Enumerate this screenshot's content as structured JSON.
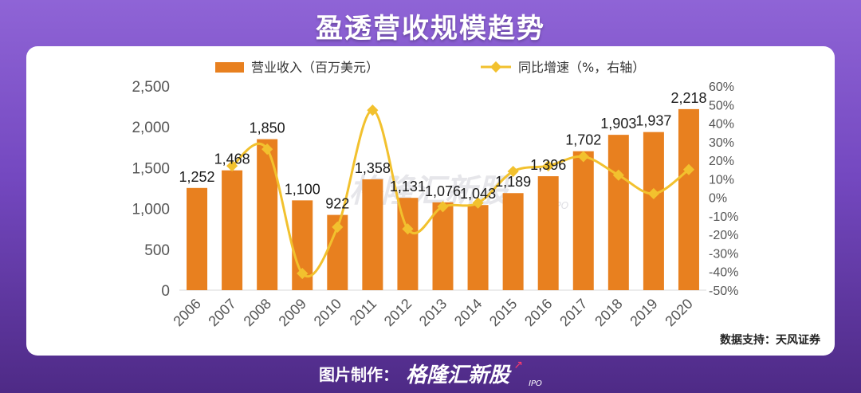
{
  "title": "盈透营收规模趋势",
  "source": "数据支持：天风证券",
  "footer": {
    "label": "图片制作：",
    "brand": "格隆汇新股",
    "brand_suffix": "IPO"
  },
  "watermark": {
    "text": "格隆汇新股",
    "suffix": "IPO"
  },
  "colors": {
    "bar": "#e8801f",
    "line": "#f2c12e",
    "axis_text": "#555555",
    "label_text": "#1a1a1a"
  },
  "chart_data": {
    "type": "bar",
    "categories": [
      "2006",
      "2007",
      "2008",
      "2009",
      "2010",
      "2011",
      "2012",
      "2013",
      "2014",
      "2015",
      "2016",
      "2017",
      "2018",
      "2019",
      "2020"
    ],
    "series": [
      {
        "name": "营业收入（百万美元）",
        "type": "bar",
        "axis": "left",
        "values": [
          1252,
          1468,
          1850,
          1100,
          922,
          1358,
          1131,
          1076,
          1043,
          1189,
          1396,
          1702,
          1903,
          1937,
          2218
        ],
        "labels": [
          "1,252",
          "1,468",
          "1,850",
          "1,100",
          "922",
          "1,358",
          "1,131",
          "1,076",
          "1,043",
          "1,189",
          "1,396",
          "1,702",
          "1,903",
          "1,937",
          "2,218"
        ]
      },
      {
        "name": "同比增速（%，右轴）",
        "type": "line",
        "axis": "right",
        "values": [
          null,
          17,
          26,
          -41,
          -16,
          47,
          -17,
          -5,
          -3,
          14,
          17,
          22,
          12,
          2,
          15
        ]
      }
    ],
    "y_left": {
      "min": 0,
      "max": 2500,
      "ticks": [
        0,
        500,
        1000,
        1500,
        2000,
        2500
      ],
      "tick_labels": [
        "0",
        "500",
        "1,000",
        "1,500",
        "2,000",
        "2,500"
      ]
    },
    "y_right": {
      "min": -50,
      "max": 60,
      "ticks": [
        -50,
        -40,
        -30,
        -20,
        -10,
        0,
        10,
        20,
        30,
        40,
        50,
        60
      ],
      "tick_labels": [
        "-50%",
        "-40%",
        "-30%",
        "-20%",
        "-10%",
        "0%",
        "10%",
        "20%",
        "30%",
        "40%",
        "50%",
        "60%"
      ]
    },
    "legend_position": "top",
    "grid": false
  }
}
